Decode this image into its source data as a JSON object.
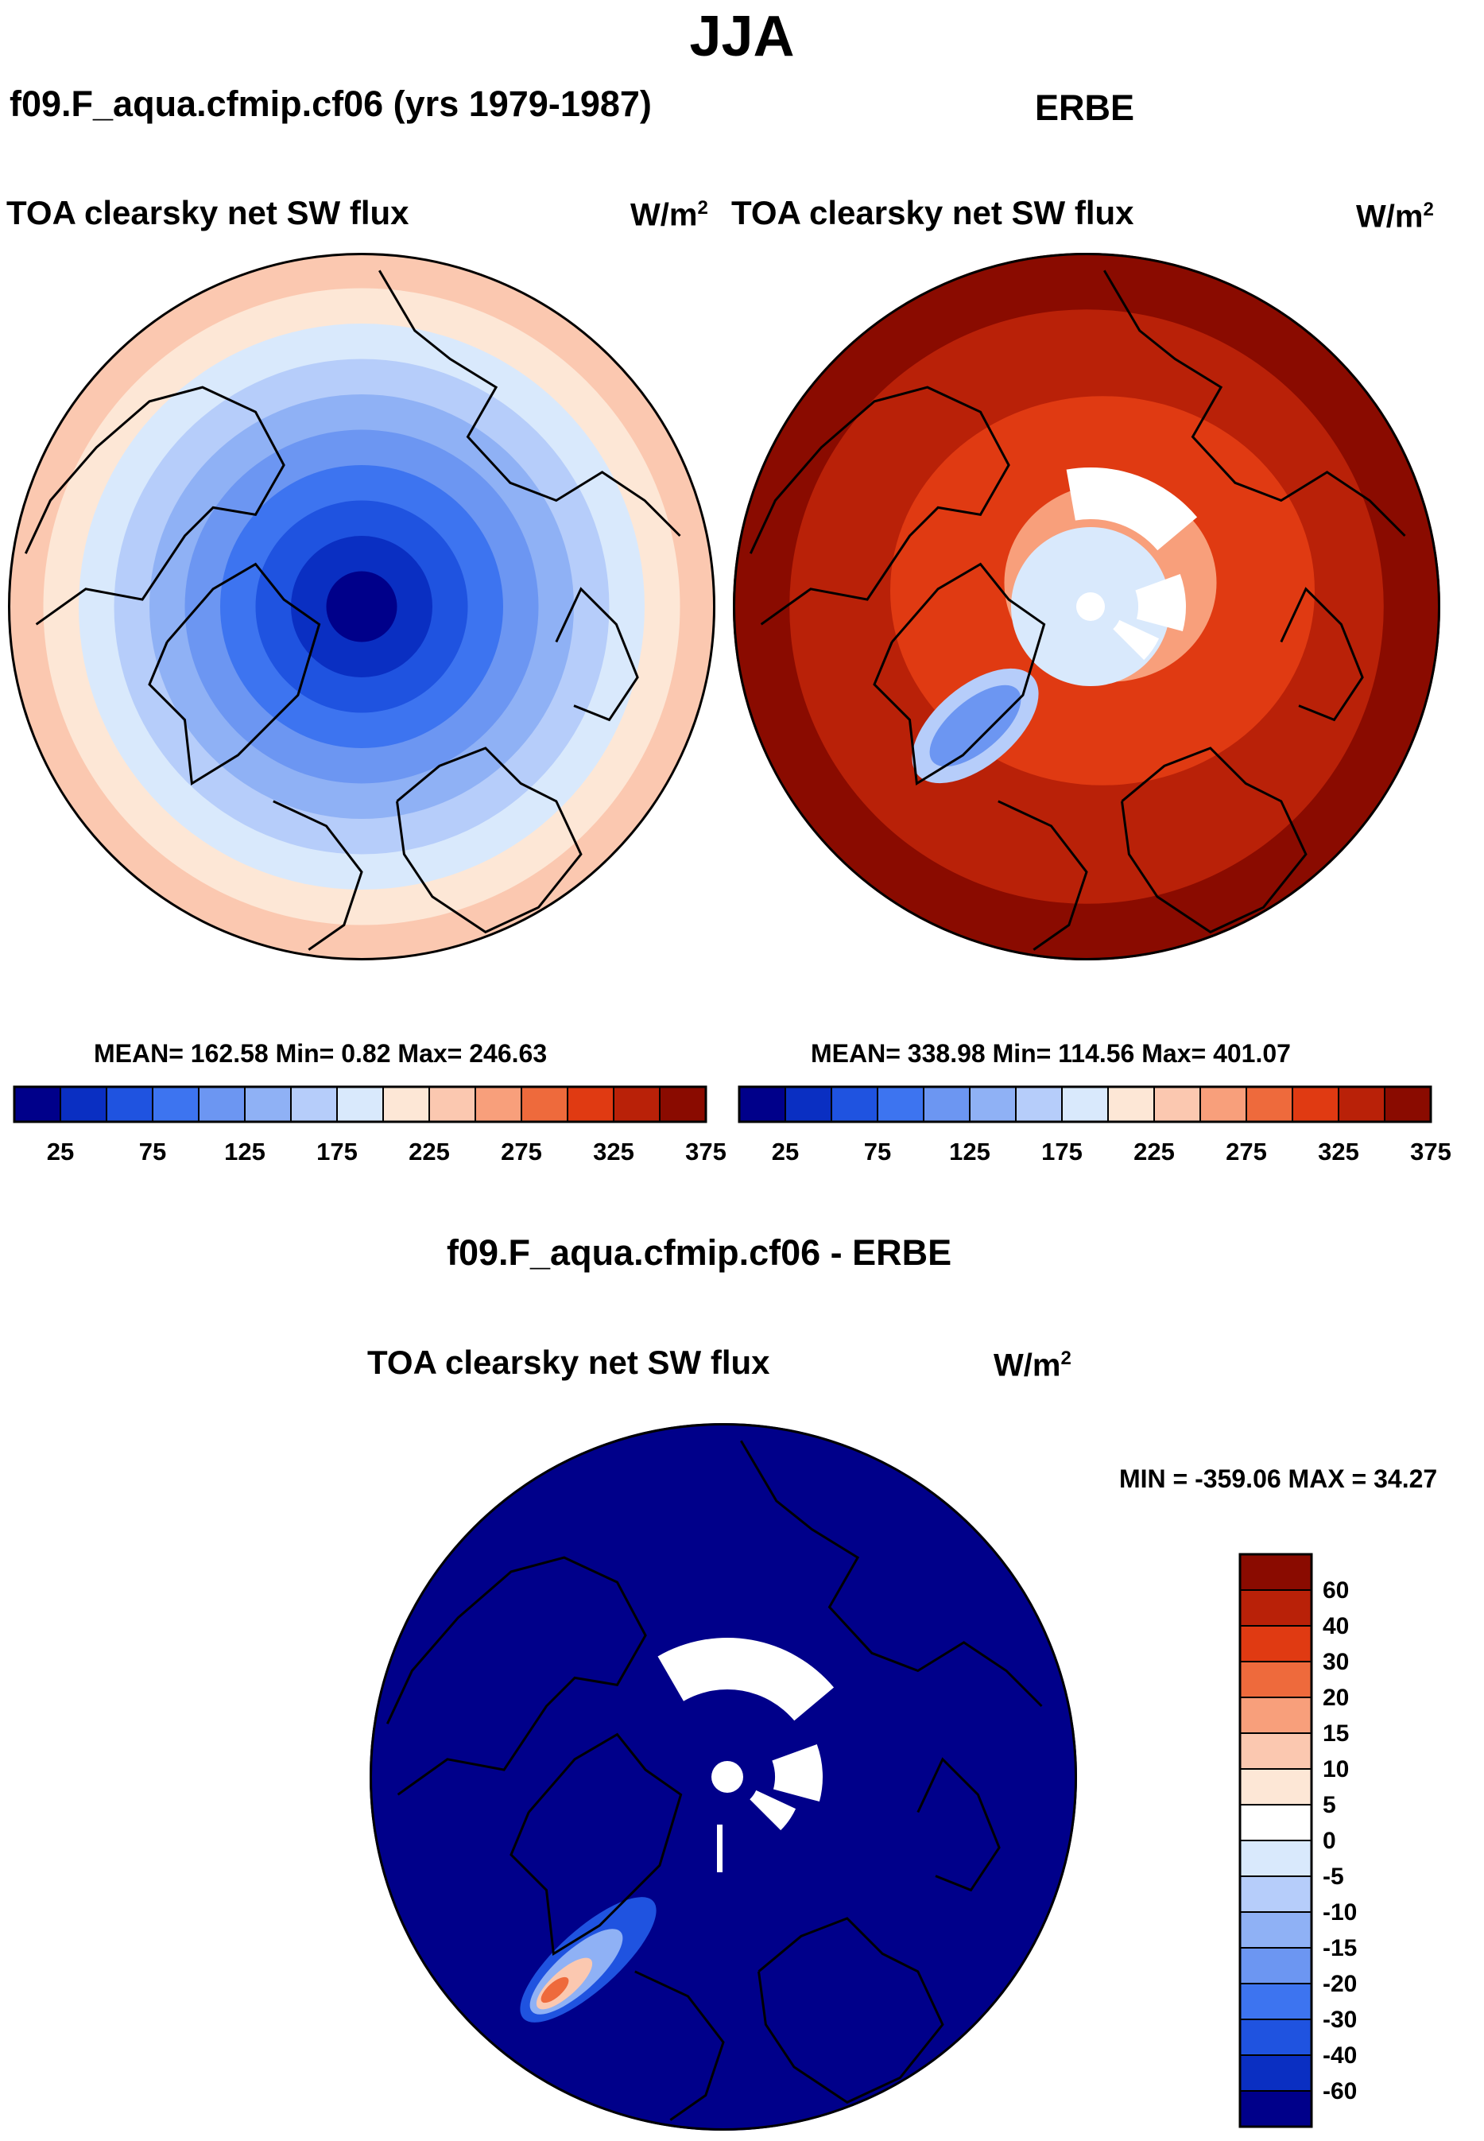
{
  "figure": {
    "title": "JJA",
    "panels": {
      "model": {
        "case_label": "f09.F_aqua.cfmip.cf06 (yrs 1979-1987)",
        "variable": "TOA clearsky net SW flux",
        "units_base": "W/m",
        "units_exp": "2",
        "stats": "MEAN= 162.58  Min=   0.82  Max= 246.63"
      },
      "obs": {
        "case_label": "ERBE",
        "variable": "TOA clearsky net SW flux",
        "units_base": "W/m",
        "units_exp": "2",
        "stats": "MEAN= 338.98  Min= 114.56  Max= 401.07"
      },
      "diff": {
        "case_label": "f09.F_aqua.cfmip.cf06 - ERBE",
        "variable": "TOA clearsky net SW flux",
        "units_base": "W/m",
        "units_exp": "2",
        "stats": "MIN = -359.06 MAX =  34.27"
      }
    }
  },
  "chart_data": [
    {
      "type": "heatmap",
      "projection": "north-polar-stereographic",
      "title": "TOA clearsky net SW flux",
      "subtitle": "f09.F_aqua.cfmip.cf06 (yrs 1979-1987)",
      "units": "W/m2",
      "mean": 162.58,
      "min": 0.82,
      "max": 246.63,
      "colorbar": {
        "colors": [
          "#00008a",
          "#0a2fc2",
          "#1f53e0",
          "#3d74f0",
          "#6c96f2",
          "#8fb1f5",
          "#b6cdfa",
          "#d9e9fc",
          "#fde7d6",
          "#fbc8b0",
          "#f89f7b",
          "#ee6a3c",
          "#e03a12",
          "#b92108",
          "#8a0b00"
        ],
        "tick_labels": [
          "25",
          "75",
          "125",
          "175",
          "225",
          "275",
          "325",
          "375"
        ],
        "tick_positions": [
          1,
          3,
          5,
          7,
          9,
          11,
          13,
          15
        ]
      },
      "field": {
        "center_value": 12,
        "edge_value": 237,
        "rings": [
          "#00008a",
          "#0a2fc2",
          "#1f53e0",
          "#3d74f0",
          "#6c96f2",
          "#8fb1f5",
          "#b6cdfa",
          "#d9e9fc",
          "#fde7d6",
          "#fbc8b0"
        ]
      }
    },
    {
      "type": "heatmap",
      "projection": "north-polar-stereographic",
      "title": "TOA clearsky net SW flux",
      "subtitle": "ERBE",
      "units": "W/m2",
      "mean": 338.98,
      "min": 114.56,
      "max": 401.07,
      "colorbar": {
        "colors": [
          "#00008a",
          "#0a2fc2",
          "#1f53e0",
          "#3d74f0",
          "#6c96f2",
          "#8fb1f5",
          "#b6cdfa",
          "#d9e9fc",
          "#fde7d6",
          "#fbc8b0",
          "#f89f7b",
          "#ee6a3c",
          "#e03a12",
          "#b92108",
          "#8a0b00"
        ],
        "tick_labels": [
          "25",
          "75",
          "125",
          "175",
          "225",
          "275",
          "325",
          "375"
        ],
        "tick_positions": [
          1,
          3,
          5,
          7,
          9,
          11,
          13,
          15
        ]
      },
      "field": {
        "outer_color": "#8a0b00",
        "mid_color": "#b92108",
        "inner_color": "#e03a12",
        "greenland_color": "#6c96f2",
        "polar_color": "#d9e9fc",
        "missing_color": "#ffffff"
      }
    },
    {
      "type": "heatmap",
      "projection": "north-polar-stereographic",
      "title": "TOA clearsky net SW flux",
      "subtitle": "f09.F_aqua.cfmip.cf06 - ERBE",
      "units": "W/m2",
      "min": -359.06,
      "max": 34.27,
      "colorbar": {
        "levels": [
          "60",
          "40",
          "30",
          "20",
          "15",
          "10",
          "5",
          "0",
          "-5",
          "-10",
          "-15",
          "-20",
          "-30",
          "-40",
          "-60"
        ],
        "colors": [
          "#8a0b00",
          "#b92108",
          "#e03a12",
          "#ee6a3c",
          "#f89f7b",
          "#fbc8b0",
          "#fde7d6",
          "#ffffff",
          "#d9e9fc",
          "#b6cdfa",
          "#8fb1f5",
          "#6c96f2",
          "#3d74f0",
          "#1f53e0",
          "#0a2fc2",
          "#00008a"
        ]
      },
      "field": {
        "background_color": "#00008a",
        "missing_color": "#ffffff"
      }
    }
  ]
}
